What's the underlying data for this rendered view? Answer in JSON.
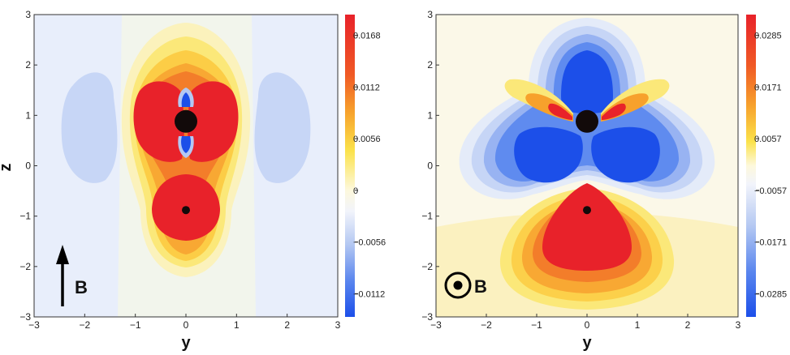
{
  "chart_data": [
    {
      "type": "heatmap",
      "panel": "left",
      "xlabel": "y",
      "ylabel": "z",
      "xlim": [
        -3,
        3
      ],
      "ylim": [
        -3,
        3
      ],
      "x_ticks": [
        "−3",
        "−2",
        "−1",
        "0",
        "1",
        "2",
        "3"
      ],
      "y_ticks": [
        "−3",
        "−2",
        "−1",
        "0",
        "1",
        "2",
        "3"
      ],
      "colorbar_ticks": [
        "0.0168",
        "0.0112",
        "0.0056",
        "0",
        "−0.0056",
        "−0.0112"
      ],
      "colorbar_values": [
        0.0168,
        0.0112,
        0.0056,
        0,
        -0.0056,
        -0.0112
      ],
      "field_label": "B",
      "field_direction": "up-arrow",
      "points": [
        {
          "y": 0,
          "z": 0.88,
          "size": "large"
        },
        {
          "y": 0,
          "z": -0.88,
          "size": "small"
        }
      ],
      "features": [
        {
          "sign": "positive",
          "y": -0.45,
          "z": 0.9
        },
        {
          "sign": "positive",
          "y": 0.45,
          "z": 0.9
        },
        {
          "sign": "positive",
          "y": 0,
          "z": -0.85
        },
        {
          "sign": "negative",
          "y": 0,
          "z": 1.25
        },
        {
          "sign": "negative",
          "y": 0,
          "z": 0.5
        },
        {
          "sign": "negative",
          "y": -1.75,
          "z": 0.55
        },
        {
          "sign": "negative",
          "y": 1.75,
          "z": 0.55
        }
      ]
    },
    {
      "type": "heatmap",
      "panel": "right",
      "xlabel": "y",
      "ylabel": "",
      "xlim": [
        -3,
        3
      ],
      "ylim": [
        -3,
        3
      ],
      "x_ticks": [
        "−3",
        "−2",
        "−1",
        "0",
        "1",
        "2",
        "3"
      ],
      "y_ticks": [
        "−3",
        "−2",
        "−1",
        "0",
        "1",
        "2",
        "3"
      ],
      "colorbar_ticks": [
        "0.0285",
        "0.0171",
        "0.0057",
        "−0.0057",
        "−0.0171",
        "−0.0285"
      ],
      "colorbar_values": [
        0.0285,
        0.0171,
        0.0057,
        -0.0057,
        -0.0171,
        -0.0285
      ],
      "field_label": "B",
      "field_direction": "out-of-page",
      "points": [
        {
          "y": 0,
          "z": 0.88,
          "size": "large"
        },
        {
          "y": 0,
          "z": -0.88,
          "size": "small"
        }
      ],
      "features": [
        {
          "sign": "negative",
          "y": 0,
          "z": 1.7
        },
        {
          "sign": "negative",
          "y": -0.75,
          "z": 0.2
        },
        {
          "sign": "negative",
          "y": 0.75,
          "z": 0.2
        },
        {
          "sign": "positive",
          "y": -0.55,
          "z": 1.1
        },
        {
          "sign": "positive",
          "y": 0.55,
          "z": 1.1
        },
        {
          "sign": "positive",
          "y": 0,
          "z": -1.1
        }
      ]
    }
  ]
}
